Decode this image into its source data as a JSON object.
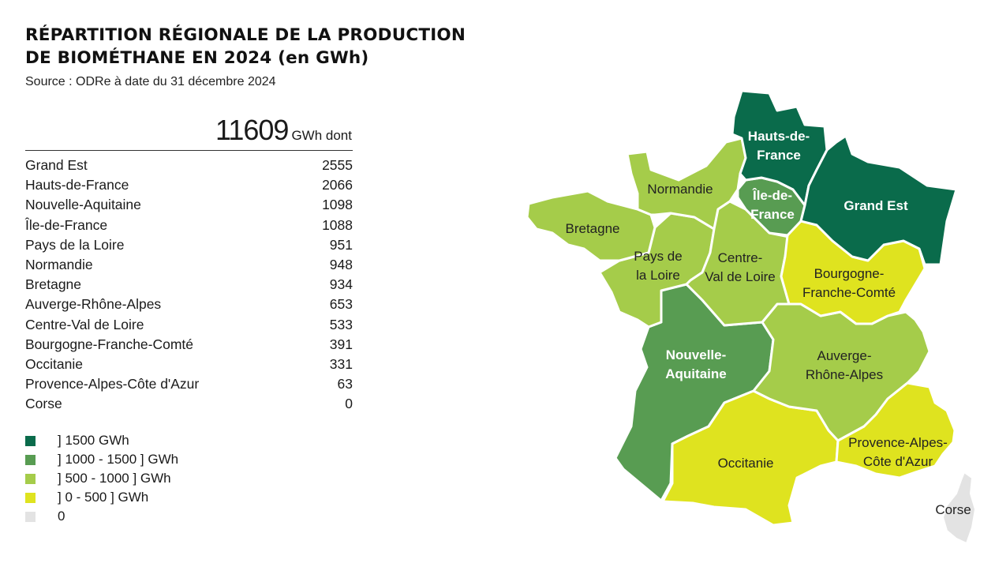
{
  "title_line1": "RÉPARTITION RÉGIONALE DE LA PRODUCTION",
  "title_line2": "DE BIOMÉTHANE EN 2024 (en GWh)",
  "source": "Source : ODRe à date du 31 décembre 2024",
  "total": {
    "value": "11609",
    "unit": "GWh dont"
  },
  "regions": [
    {
      "name": "Grand Est",
      "value": "2555"
    },
    {
      "name": "Hauts-de-France",
      "value": "2066"
    },
    {
      "name": "Nouvelle-Aquitaine",
      "value": "1098"
    },
    {
      "name": "Île-de-France",
      "value": "1088"
    },
    {
      "name": "Pays de la Loire",
      "value": "951"
    },
    {
      "name": "Normandie",
      "value": "948"
    },
    {
      "name": "Bretagne",
      "value": "934"
    },
    {
      "name": "Auverge-Rhône-Alpes",
      "value": "653"
    },
    {
      "name": "Centre-Val de Loire",
      "value": "533"
    },
    {
      "name": "Bourgogne-Franche-Comté",
      "value": "391"
    },
    {
      "name": "Occitanie",
      "value": "331"
    },
    {
      "name": "Provence-Alpes-Côte d'Azur",
      "value": "63"
    },
    {
      "name": "Corse",
      "value": "0"
    }
  ],
  "legend": [
    {
      "label": "] 1500 GWh",
      "color": "#0a6b4b"
    },
    {
      "label": "] 1000 - 1500 ] GWh",
      "color": "#589c52"
    },
    {
      "label": "] 500 - 1000 ] GWh",
      "color": "#a5cc4a"
    },
    {
      "label": "] 0 - 500 ] GWh",
      "color": "#dfe31f"
    },
    {
      "label": "0",
      "color": "#e3e3e3"
    }
  ],
  "map_labels": {
    "hauts": [
      "Hauts-de-",
      "France"
    ],
    "grandest": [
      "Grand Est"
    ],
    "normandie": [
      "Normandie"
    ],
    "idf": [
      "Île-de-",
      "France"
    ],
    "bretagne": [
      "Bretagne"
    ],
    "pdl": [
      "Pays de",
      "la Loire"
    ],
    "cvl": [
      "Centre-",
      "Val de Loire"
    ],
    "bfc": [
      "Bourgogne-",
      "Franche-Comté"
    ],
    "naq": [
      "Nouvelle-",
      "Aquitaine"
    ],
    "ara": [
      "Auverge-",
      "Rhône-Alpes"
    ],
    "paca": [
      "Provence-Alpes-",
      "Côte d'Azur"
    ],
    "occ": [
      "Occitanie"
    ],
    "corse": [
      "Corse"
    ]
  }
}
